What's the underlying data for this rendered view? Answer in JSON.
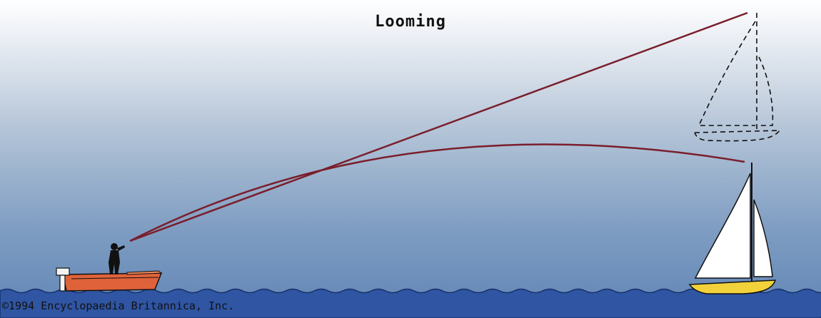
{
  "title": "Looming",
  "credit": "©1994 Encyclopaedia Britannica, Inc.",
  "colors": {
    "sky_top": "#ffffff",
    "sky_bottom": "#5e84b4",
    "sea": "#2f55a3",
    "sight_line": "#7a1e2c",
    "motorboat_hull": "#e0623a",
    "sailboat_hull": "#f2d23a",
    "sail": "#ffffff"
  }
}
